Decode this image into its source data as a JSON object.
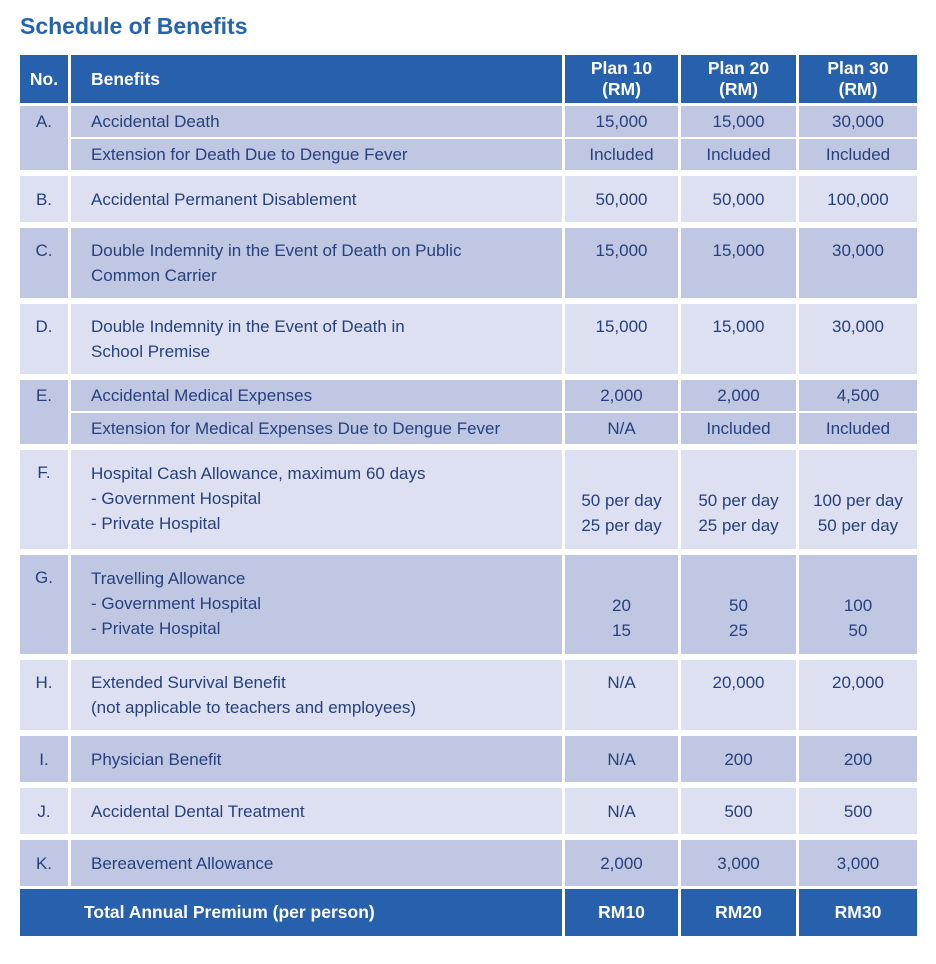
{
  "title": "Schedule of Benefits",
  "colors": {
    "header_bg": "#2760ad",
    "row_dark": "#bfc7e2",
    "row_light": "#dce0f0",
    "text_navy": "#273f7c",
    "title_blue": "#2565af"
  },
  "table": {
    "header": {
      "no": "No.",
      "benefits": "Benefits",
      "plans": [
        {
          "title": "Plan 10",
          "unit": "(RM)"
        },
        {
          "title": "Plan 20",
          "unit": "(RM)"
        },
        {
          "title": "Plan 30",
          "unit": "(RM)"
        }
      ]
    },
    "groups": [
      {
        "no": "A.",
        "shade": "dark",
        "rows": [
          {
            "benefit": [
              "Accidental Death"
            ],
            "values": [
              "15,000",
              "15,000",
              "30,000"
            ]
          },
          {
            "benefit": [
              "Extension for Death Due to Dengue Fever"
            ],
            "values": [
              "Included",
              "Included",
              "Included"
            ]
          }
        ]
      },
      {
        "no": "B.",
        "shade": "light",
        "rows": [
          {
            "benefit": [
              "Accidental Permanent Disablement"
            ],
            "values": [
              "50,000",
              "50,000",
              "100,000"
            ]
          }
        ]
      },
      {
        "no": "C.",
        "shade": "dark",
        "rows": [
          {
            "benefit": [
              "Double Indemnity in the Event of Death on Public",
              "Common Carrier"
            ],
            "values": [
              "15,000",
              "15,000",
              "30,000"
            ]
          }
        ]
      },
      {
        "no": "D.",
        "shade": "light",
        "rows": [
          {
            "benefit": [
              "Double Indemnity in the Event of Death in",
              "School Premise"
            ],
            "values": [
              "15,000",
              "15,000",
              "30,000"
            ]
          }
        ]
      },
      {
        "no": "E.",
        "shade": "dark",
        "rows": [
          {
            "benefit": [
              "Accidental Medical Expenses"
            ],
            "values": [
              "2,000",
              "2,000",
              "4,500"
            ]
          },
          {
            "benefit": [
              "Extension for Medical Expenses Due to Dengue Fever"
            ],
            "values": [
              "N/A",
              "Included",
              "Included"
            ]
          }
        ]
      },
      {
        "no": "F.",
        "shade": "light",
        "rows": [
          {
            "benefit": [
              "Hospital Cash Allowance, maximum 60 days",
              "- Government Hospital",
              "- Private Hospital"
            ],
            "values": [
              [
                "50 per day",
                "25 per day"
              ],
              [
                "50 per day",
                "25 per day"
              ],
              [
                "100 per day",
                "50 per day"
              ]
            ],
            "valign": "bottom"
          }
        ]
      },
      {
        "no": "G.",
        "shade": "dark",
        "rows": [
          {
            "benefit": [
              "Travelling Allowance",
              "- Government Hospital",
              "- Private Hospital"
            ],
            "values": [
              [
                "20",
                "15"
              ],
              [
                "50",
                "25"
              ],
              [
                "100",
                "50"
              ]
            ],
            "valign": "bottom"
          }
        ]
      },
      {
        "no": "H.",
        "shade": "light",
        "rows": [
          {
            "benefit": [
              "Extended Survival Benefit",
              "(not applicable to teachers and employees)"
            ],
            "values": [
              "N/A",
              "20,000",
              "20,000"
            ]
          }
        ]
      },
      {
        "no": "I.",
        "shade": "dark",
        "rows": [
          {
            "benefit": [
              "Physician Benefit"
            ],
            "values": [
              "N/A",
              "200",
              "200"
            ]
          }
        ]
      },
      {
        "no": "J.",
        "shade": "light",
        "rows": [
          {
            "benefit": [
              "Accidental Dental Treatment"
            ],
            "values": [
              "N/A",
              "500",
              "500"
            ]
          }
        ]
      },
      {
        "no": "K.",
        "shade": "dark",
        "rows": [
          {
            "benefit": [
              "Bereavement Allowance"
            ],
            "values": [
              "2,000",
              "3,000",
              "3,000"
            ]
          }
        ]
      }
    ],
    "footer": {
      "label": "Total Annual Premium (per person)",
      "values": [
        "RM10",
        "RM20",
        "RM30"
      ]
    }
  }
}
